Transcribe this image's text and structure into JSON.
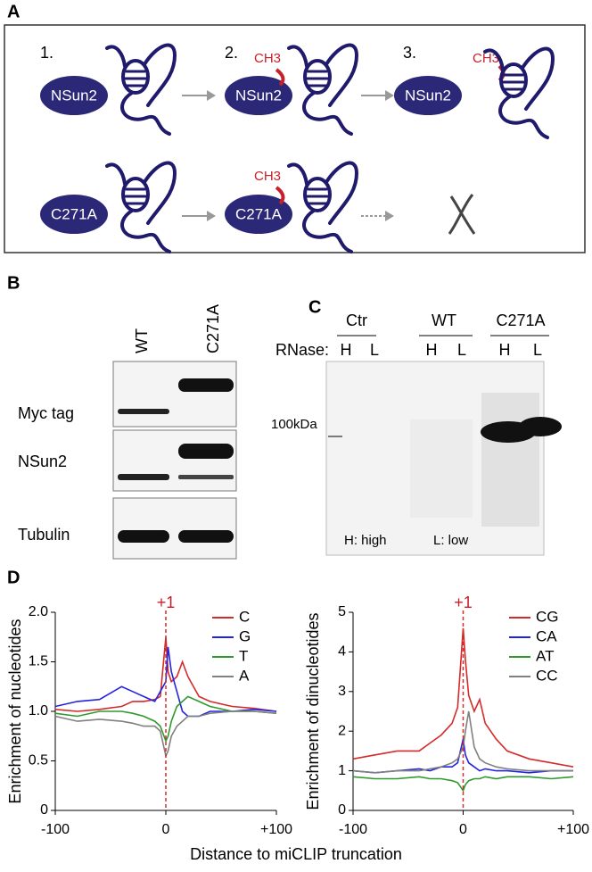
{
  "panel_labels": [
    "A",
    "B",
    "C",
    "D"
  ],
  "panel_a": {
    "steps": [
      "1.",
      "2.",
      "3."
    ],
    "enzyme_wt": [
      "NSun2",
      "NSun2",
      "NSun2"
    ],
    "enzyme_mutant": [
      "C271A",
      "C271A"
    ],
    "methyl": [
      "CH3",
      "CH3",
      "CH3"
    ]
  },
  "panel_b": {
    "columns": [
      "WT",
      "C271A"
    ],
    "rows": [
      "Myc tag",
      "NSun2",
      "Tubulin"
    ]
  },
  "panel_c": {
    "groups": [
      "Ctr",
      "WT",
      "C271A"
    ],
    "rnase_label": "RNase:",
    "lanes": [
      "H",
      "L",
      "H",
      "L",
      "H",
      "L"
    ],
    "marker": "100kDa",
    "legend": [
      "H: high",
      "L: low"
    ]
  },
  "panel_d": {
    "x_label": "Distance to miCLIP truncation"
  },
  "chart_data": [
    {
      "type": "line",
      "y_label": "Enrichment of nucleotides",
      "annotation": "+1",
      "legend": "upper right",
      "x": [
        -100,
        -80,
        -60,
        -40,
        -30,
        -20,
        -10,
        -5,
        0,
        2,
        5,
        10,
        15,
        20,
        30,
        40,
        60,
        80,
        100
      ],
      "xlim": [
        -100,
        100
      ],
      "xticks": [
        -100,
        0,
        {
          "value": 100,
          "label": "+100"
        }
      ],
      "ylim": [
        0,
        2
      ],
      "yticks": [
        0,
        0.5,
        {
          "value": 1,
          "label": "1.0"
        },
        1.5,
        {
          "value": 2,
          "label": "2.0"
        }
      ],
      "series": [
        {
          "name": "C",
          "color": "#d42a2a",
          "values": [
            1.02,
            1.0,
            1.02,
            1.05,
            1.1,
            1.1,
            1.12,
            1.15,
            1.75,
            1.4,
            1.3,
            1.35,
            1.5,
            1.35,
            1.15,
            1.1,
            1.05,
            1.03,
            1.0
          ]
        },
        {
          "name": "G",
          "color": "#2424e0",
          "values": [
            1.05,
            1.1,
            1.12,
            1.25,
            1.2,
            1.15,
            1.1,
            1.2,
            1.3,
            1.65,
            1.4,
            1.2,
            1.0,
            0.95,
            0.95,
            1.0,
            1.0,
            1.02,
            1.0
          ]
        },
        {
          "name": "T",
          "color": "#2e9a2e",
          "values": [
            0.98,
            0.95,
            1.0,
            1.0,
            0.98,
            0.95,
            0.9,
            0.85,
            0.7,
            0.75,
            0.9,
            1.05,
            1.1,
            1.15,
            1.1,
            1.05,
            1.0,
            1.0,
            0.98
          ]
        },
        {
          "name": "A",
          "color": "#808080",
          "values": [
            0.95,
            0.9,
            0.92,
            0.9,
            0.88,
            0.85,
            0.85,
            0.8,
            0.55,
            0.6,
            0.75,
            0.85,
            0.9,
            0.95,
            0.95,
            0.98,
            1.0,
            1.0,
            0.98
          ]
        }
      ]
    },
    {
      "type": "line",
      "y_label": "Enrichment of dinucleotides",
      "annotation": "+1",
      "legend": "upper right",
      "x": [
        -100,
        -80,
        -60,
        -40,
        -30,
        -20,
        -10,
        -5,
        0,
        2,
        5,
        10,
        15,
        20,
        30,
        40,
        60,
        80,
        100
      ],
      "xlim": [
        -100,
        100
      ],
      "xticks": [
        -100,
        0,
        {
          "value": 100,
          "label": "+100"
        }
      ],
      "ylim": [
        0,
        5
      ],
      "yticks": [
        0,
        1,
        2,
        3,
        4,
        5
      ],
      "series": [
        {
          "name": "CG",
          "color": "#d42a2a",
          "values": [
            1.3,
            1.4,
            1.5,
            1.5,
            1.7,
            1.9,
            2.2,
            2.6,
            4.6,
            3.8,
            2.9,
            2.5,
            2.8,
            2.2,
            1.8,
            1.5,
            1.3,
            1.2,
            1.1
          ]
        },
        {
          "name": "CA",
          "color": "#2424e0",
          "values": [
            1.0,
            0.95,
            1.0,
            1.05,
            1.0,
            1.1,
            1.1,
            1.2,
            1.8,
            1.4,
            1.2,
            1.1,
            1.0,
            1.05,
            1.0,
            1.0,
            0.95,
            1.0,
            1.0
          ]
        },
        {
          "name": "AT",
          "color": "#2e9a2e",
          "values": [
            0.85,
            0.8,
            0.8,
            0.85,
            0.8,
            0.8,
            0.75,
            0.7,
            0.5,
            0.65,
            0.75,
            0.8,
            0.8,
            0.85,
            0.8,
            0.85,
            0.85,
            0.8,
            0.85
          ]
        },
        {
          "name": "CC",
          "color": "#808080",
          "values": [
            1.0,
            0.95,
            1.0,
            1.0,
            1.05,
            1.1,
            1.2,
            1.3,
            1.6,
            2.0,
            2.5,
            1.6,
            1.3,
            1.2,
            1.1,
            1.05,
            1.0,
            1.0,
            1.0
          ]
        }
      ]
    }
  ]
}
